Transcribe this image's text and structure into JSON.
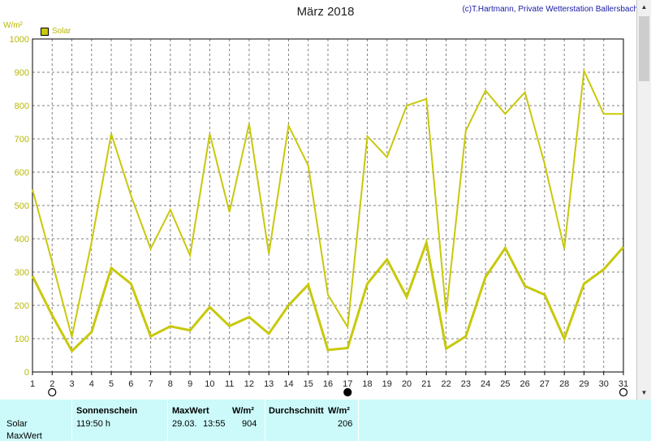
{
  "header": {
    "title": "März 2018",
    "credit": "(c)T.Hartmann, Private Wetterstation Ballersbach",
    "unit": "W/m²"
  },
  "legend": {
    "label": "Solar",
    "color": "#c8c80c"
  },
  "chart_data": {
    "type": "line",
    "x": [
      1,
      2,
      3,
      4,
      5,
      6,
      7,
      8,
      9,
      10,
      11,
      12,
      13,
      14,
      15,
      16,
      17,
      18,
      19,
      20,
      21,
      22,
      23,
      24,
      25,
      26,
      27,
      28,
      29,
      30,
      31
    ],
    "ylim": [
      0,
      1000
    ],
    "yticks": [
      0,
      100,
      200,
      300,
      400,
      500,
      600,
      700,
      800,
      900,
      1000
    ],
    "grid": true,
    "legend_position": "top-left",
    "series": [
      {
        "name": "Solar",
        "role": "maxwert",
        "color": "#c8c80c",
        "values": [
          548,
          330,
          105,
          390,
          715,
          530,
          370,
          487,
          350,
          715,
          480,
          745,
          355,
          740,
          620,
          232,
          135,
          708,
          645,
          800,
          820,
          178,
          725,
          845,
          775,
          840,
          625,
          370,
          904,
          775,
          775
        ]
      },
      {
        "name": "Solar",
        "role": "durchschnitt",
        "color": "#c8c80c",
        "values": [
          288,
          170,
          63,
          120,
          312,
          265,
          107,
          137,
          125,
          195,
          138,
          165,
          115,
          200,
          262,
          66,
          72,
          265,
          338,
          225,
          388,
          70,
          107,
          285,
          372,
          258,
          232,
          100,
          265,
          308,
          375
        ]
      }
    ],
    "markers": [
      {
        "x": 2,
        "kind": "new-moon-outline"
      },
      {
        "x": 17,
        "kind": "full-moon-filled"
      },
      {
        "x": 31,
        "kind": "new-moon-outline"
      }
    ]
  },
  "summary": {
    "row_labels": [
      "Solar",
      "MaxWert"
    ],
    "col_sunshine": {
      "header": "Sonnenschein",
      "value": "119:50 h"
    },
    "col_max": {
      "header": "MaxWert",
      "unit": "W/m²",
      "date": "29.03.",
      "time": "13:55",
      "value": "904"
    },
    "col_avg": {
      "header": "Durchschnitt",
      "unit": "W/m²",
      "value": "206"
    }
  }
}
